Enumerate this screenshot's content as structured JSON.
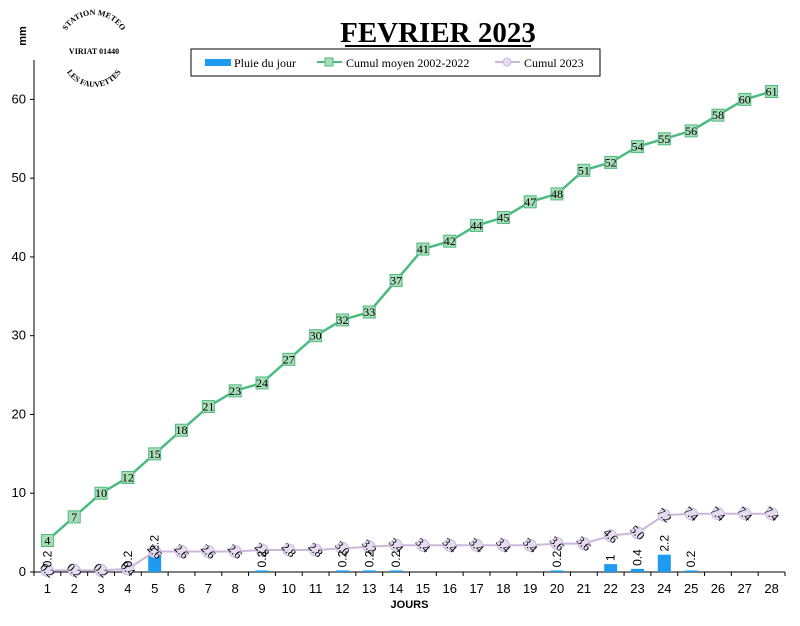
{
  "chart_data": {
    "type": "bar+line",
    "title": "FEVRIER 2023",
    "ylabel": "mm",
    "xlabel": "JOURS",
    "ylim": [
      0,
      65
    ],
    "yticks": [
      0,
      10,
      20,
      30,
      40,
      50,
      60
    ],
    "categories": [
      "1",
      "2",
      "3",
      "4",
      "5",
      "6",
      "7",
      "8",
      "9",
      "10",
      "11",
      "12",
      "13",
      "14",
      "15",
      "16",
      "17",
      "18",
      "19",
      "20",
      "21",
      "22",
      "23",
      "24",
      "25",
      "26",
      "27",
      "28"
    ],
    "legend_position": "top",
    "series": [
      {
        "name": "Pluie du jour",
        "type": "bar",
        "color": "#1e9bf0",
        "values": [
          0.2,
          0,
          0,
          0.2,
          2.2,
          0,
          0,
          0,
          0.2,
          0,
          0,
          0.2,
          0.2,
          0.2,
          0,
          0,
          0,
          0,
          0,
          0.2,
          0,
          1.0,
          0.4,
          2.2,
          0.2,
          0,
          0,
          0
        ],
        "labels": [
          "0.2",
          "",
          "",
          "0.2",
          "2.2",
          "",
          "",
          "",
          "0.2",
          "",
          "",
          "0.2",
          "0.2",
          "0.2",
          "",
          "",
          "",
          "",
          "",
          "0.2",
          "",
          "1",
          "0.4",
          "2.2",
          "0.2",
          "",
          "",
          ""
        ]
      },
      {
        "name": "Cumul moyen 2002-2022",
        "type": "line",
        "color": "#4cbb7f",
        "values": [
          4,
          7,
          10,
          12,
          15,
          18,
          21,
          23,
          24,
          27,
          30,
          32,
          33,
          37,
          41,
          42,
          44,
          45,
          47,
          48,
          51,
          52,
          54,
          55,
          56,
          58,
          60,
          61
        ],
        "labels": [
          "4",
          "7",
          "10",
          "12",
          "15",
          "18",
          "21",
          "23",
          "24",
          "27",
          "30",
          "32",
          "33",
          "37",
          "41",
          "42",
          "44",
          "45",
          "47",
          "48",
          "51",
          "52",
          "54",
          "55",
          "56",
          "58",
          "60",
          "61"
        ]
      },
      {
        "name": "Cumul 2023",
        "type": "line",
        "color": "#c9b8dc",
        "values": [
          0.2,
          0.2,
          0.2,
          0.4,
          2.6,
          2.6,
          2.6,
          2.6,
          2.8,
          2.8,
          2.8,
          3.0,
          3.2,
          3.4,
          3.4,
          3.4,
          3.4,
          3.4,
          3.4,
          3.6,
          3.6,
          4.6,
          5.0,
          7.2,
          7.4,
          7.4,
          7.4,
          7.4
        ],
        "labels": [
          "0.2",
          "0.2",
          "0.2",
          "0.4",
          "2.6",
          "2.6",
          "2.6",
          "2.6",
          "2.8",
          "2.8",
          "2.8",
          "3.0",
          "3.2",
          "3.4",
          "3.4",
          "3.4",
          "3.4",
          "3.4",
          "3.4",
          "3.6",
          "3.6",
          "4.6",
          "5.0",
          "7.2",
          "7.4",
          "7.4",
          "7.4",
          "7.4"
        ]
      }
    ]
  },
  "stamp": {
    "line1": "STATION METEO",
    "line2": "VIRIAT 01440",
    "line3": "LES FAUVETTES"
  }
}
